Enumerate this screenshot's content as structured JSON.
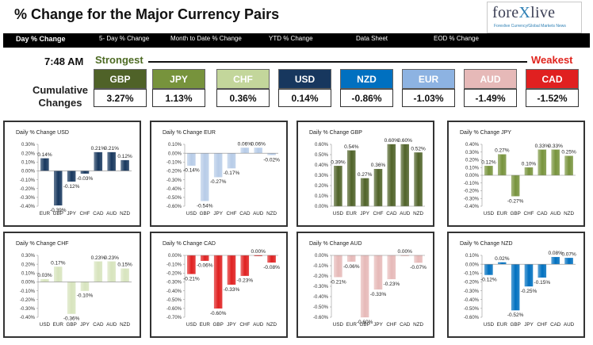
{
  "header": {
    "title": "% Change for the Major Currency Pairs",
    "logo_text_a": "fore",
    "logo_text_x": "X",
    "logo_text_b": "live",
    "logo_sub": "Forexlive Currency/Global Markets News"
  },
  "nav": [
    {
      "label": "Day % Change",
      "active": true
    },
    {
      "label": "5- Day % Change",
      "active": false
    },
    {
      "label": "Month to Date % Change",
      "active": false
    },
    {
      "label": "YTD % Change",
      "active": false
    },
    {
      "label": "Data Sheet",
      "active": false
    },
    {
      "label": "EOD % Change",
      "active": false
    }
  ],
  "summary": {
    "time": "7:48 AM",
    "strongest_label": "Strongest",
    "weakest_label": "Weakest",
    "cumulative_label": "Cumulative Changes",
    "pairs": [
      {
        "name": "GBP",
        "value": "3.27%",
        "color": "#4f6228"
      },
      {
        "name": "JPY",
        "value": "1.13%",
        "color": "#77933c"
      },
      {
        "name": "CHF",
        "value": "0.36%",
        "color": "#c3d69b"
      },
      {
        "name": "USD",
        "value": "0.14%",
        "color": "#17375e"
      },
      {
        "name": "NZD",
        "value": "-0.86%",
        "color": "#0070c0"
      },
      {
        "name": "EUR",
        "value": "-1.03%",
        "color": "#8db3e2"
      },
      {
        "name": "AUD",
        "value": "-1.49%",
        "color": "#e6b9b8"
      },
      {
        "name": "CAD",
        "value": "-1.52%",
        "color": "#e02020"
      }
    ]
  },
  "chart_data": [
    {
      "type": "bar",
      "title": "Daily % Change USD",
      "categories": [
        "EUR",
        "GBP",
        "JPY",
        "CHF",
        "CAD",
        "AUD",
        "NZD"
      ],
      "values": [
        0.14,
        -0.39,
        -0.12,
        -0.03,
        0.21,
        0.21,
        0.12
      ],
      "labels": [
        "0.14%",
        "-0.39%",
        "-0.12%",
        "-0.03%",
        "0.21%",
        "0.21%",
        "0.12%"
      ],
      "ylim": [
        -0.4,
        0.3
      ],
      "yticks": [
        "0.30%",
        "0.20%",
        "0.10%",
        "0.00%",
        "-0.10%",
        "-0.20%",
        "-0.30%",
        "-0.40%"
      ],
      "bar_color": "#17375e"
    },
    {
      "type": "bar",
      "title": "Daily % Change EUR",
      "categories": [
        "USD",
        "GBP",
        "JPY",
        "CHF",
        "CAD",
        "AUD",
        "NZD"
      ],
      "values": [
        -0.14,
        -0.54,
        -0.27,
        -0.17,
        0.06,
        0.06,
        -0.02
      ],
      "labels": [
        "-0.14%",
        "-0.54%",
        "-0.27%",
        "-0.17%",
        "0.06%",
        "0.06%",
        "-0.02%"
      ],
      "ylim": [
        -0.6,
        0.1
      ],
      "yticks": [
        "0.10%",
        "0.00%",
        "-0.10%",
        "-0.20%",
        "-0.30%",
        "-0.40%",
        "-0.50%",
        "-0.60%"
      ],
      "bar_color": "#b7cce8"
    },
    {
      "type": "bar",
      "title": "Daily % Change GBP",
      "categories": [
        "USD",
        "EUR",
        "JPY",
        "CHF",
        "CAD",
        "AUD",
        "NZD"
      ],
      "values": [
        0.39,
        0.54,
        0.27,
        0.36,
        0.6,
        0.6,
        0.52
      ],
      "labels": [
        "0.39%",
        "0.54%",
        "0.27%",
        "0.36%",
        "0.60%",
        "0.60%",
        "0.52%"
      ],
      "ylim": [
        0.0,
        0.6
      ],
      "yticks": [
        "0.60%",
        "0.50%",
        "0.40%",
        "0.30%",
        "0.20%",
        "0.10%",
        "0.00%"
      ],
      "bar_color": "#4f6228"
    },
    {
      "type": "bar",
      "title": "Daily % Change JPY",
      "categories": [
        "USD",
        "EUR",
        "GBP",
        "CHF",
        "CAD",
        "AUD",
        "NZD"
      ],
      "values": [
        0.12,
        0.27,
        -0.27,
        0.1,
        0.33,
        0.33,
        0.25
      ],
      "labels": [
        "0.12%",
        "0.27%",
        "-0.27%",
        "0.10%",
        "0.33%",
        "0.33%",
        "0.25%"
      ],
      "ylim": [
        -0.4,
        0.4
      ],
      "yticks": [
        "0.40%",
        "0.30%",
        "0.20%",
        "0.10%",
        "0.00%",
        "-0.10%",
        "-0.20%",
        "-0.30%",
        "-0.40%"
      ],
      "bar_color": "#77933c"
    },
    {
      "type": "bar",
      "title": "Daily % Change CHF",
      "categories": [
        "USD",
        "EUR",
        "GBP",
        "JPY",
        "CAD",
        "AUD",
        "NZD"
      ],
      "values": [
        0.03,
        0.17,
        -0.36,
        -0.1,
        0.23,
        0.23,
        0.15
      ],
      "labels": [
        "0.03%",
        "0.17%",
        "-0.36%",
        "-0.10%",
        "0.23%",
        "0.23%",
        "0.15%"
      ],
      "ylim": [
        -0.4,
        0.3
      ],
      "yticks": [
        "0.30%",
        "0.20%",
        "0.10%",
        "0.00%",
        "-0.10%",
        "-0.20%",
        "-0.30%",
        "-0.40%"
      ],
      "bar_color": "#d7e4bd"
    },
    {
      "type": "bar",
      "title": "Daily % Change CAD",
      "categories": [
        "USD",
        "EUR",
        "GBP",
        "JPY",
        "CHF",
        "AUD",
        "NZD"
      ],
      "values": [
        -0.21,
        -0.06,
        -0.6,
        -0.33,
        -0.23,
        0.0,
        -0.08
      ],
      "labels": [
        "-0.21%",
        "-0.06%",
        "-0.60%",
        "-0.33%",
        "-0.23%",
        "0.00%",
        "-0.08%"
      ],
      "ylim": [
        -0.7,
        0.0
      ],
      "yticks": [
        "0.00%",
        "-0.10%",
        "-0.20%",
        "-0.30%",
        "-0.40%",
        "-0.50%",
        "-0.60%",
        "-0.70%"
      ],
      "bar_color": "#e02020"
    },
    {
      "type": "bar",
      "title": "Daily % Change AUD",
      "categories": [
        "USD",
        "EUR",
        "GBP",
        "JPY",
        "CHF",
        "CAD",
        "NZD"
      ],
      "values": [
        -0.21,
        -0.06,
        -0.6,
        -0.33,
        -0.23,
        0.0,
        -0.07
      ],
      "labels": [
        "-0.21%",
        "-0.06%",
        "-0.60%",
        "-0.33%",
        "-0.23%",
        "0.00%",
        "-0.07%"
      ],
      "ylim": [
        -0.6,
        0.0
      ],
      "yticks": [
        "0.00%",
        "-0.10%",
        "-0.20%",
        "-0.30%",
        "-0.40%",
        "-0.50%",
        "-0.60%"
      ],
      "bar_color": "#e6b9b8"
    },
    {
      "type": "bar",
      "title": "Daily % Change NZD",
      "categories": [
        "USD",
        "EUR",
        "GBP",
        "JPY",
        "CHF",
        "CAD",
        "AUD"
      ],
      "values": [
        -0.12,
        0.02,
        -0.52,
        -0.25,
        -0.15,
        0.08,
        0.07
      ],
      "labels": [
        "-0.12%",
        "0.02%",
        "-0.52%",
        "-0.25%",
        "-0.15%",
        "0.08%",
        "0.07%"
      ],
      "ylim": [
        -0.6,
        0.1
      ],
      "yticks": [
        "0.10%",
        "0.00%",
        "-0.10%",
        "-0.20%",
        "-0.30%",
        "-0.40%",
        "-0.50%",
        "-0.60%"
      ],
      "bar_color": "#0070c0"
    }
  ]
}
